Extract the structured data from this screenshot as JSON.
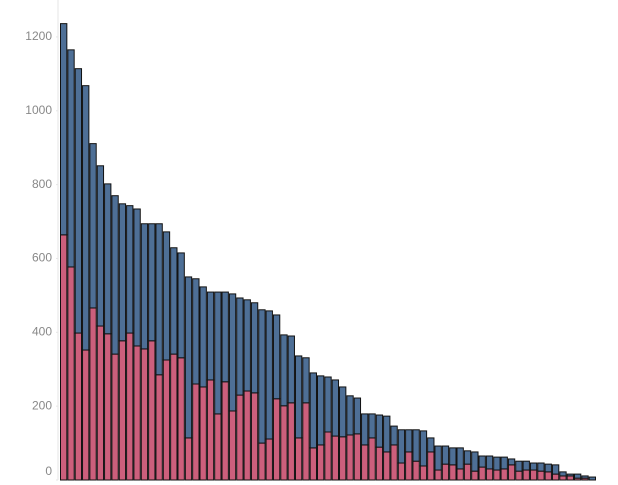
{
  "chart_data": {
    "type": "bar",
    "stacked": true,
    "grid": false,
    "categories": [
      null,
      null,
      null,
      null,
      null,
      null,
      null,
      null,
      null,
      null,
      null,
      null,
      null,
      null,
      null,
      null,
      null,
      null,
      null,
      null,
      null,
      null,
      null,
      null,
      null,
      null,
      null,
      null,
      null,
      null,
      null,
      null,
      null,
      null,
      null,
      null,
      null,
      null,
      null,
      null,
      null,
      null,
      null,
      null,
      null,
      null,
      null,
      null,
      null,
      null,
      null,
      null,
      null,
      null,
      null,
      null,
      null,
      null,
      null,
      null,
      null,
      null,
      null,
      null,
      null,
      null,
      null,
      null,
      null,
      null,
      null,
      null,
      null
    ],
    "series": [
      {
        "color": "#cc5f7c",
        "values": [
          664,
          577,
          398,
          352,
          466,
          417,
          396,
          341,
          377,
          398,
          363,
          355,
          377,
          285,
          325,
          341,
          331,
          114,
          260,
          252,
          271,
          179,
          266,
          187,
          230,
          241,
          236,
          100,
          111,
          220,
          201,
          209,
          114,
          209,
          87,
          95,
          130,
          119,
          117,
          122,
          125,
          95,
          114,
          89,
          76,
          95,
          46,
          76,
          51,
          38,
          76,
          27,
          43,
          41,
          30,
          43,
          24,
          35,
          30,
          27,
          30,
          41,
          24,
          27,
          27,
          24,
          22,
          16,
          11,
          11,
          5,
          5,
          0
        ]
      },
      {
        "color": "#4e6f96",
        "values": [
          572,
          588,
          716,
          716,
          445,
          434,
          406,
          429,
          371,
          345,
          371,
          339,
          317,
          409,
          347,
          288,
          284,
          436,
          285,
          271,
          238,
          330,
          243,
          317,
          263,
          247,
          244,
          361,
          347,
          227,
          192,
          181,
          222,
          122,
          203,
          187,
          149,
          152,
          135,
          106,
          97,
          84,
          65,
          87,
          97,
          51,
          90,
          60,
          85,
          95,
          38,
          65,
          49,
          46,
          57,
          36,
          52,
          30,
          35,
          35,
          32,
          16,
          27,
          24,
          19,
          22,
          21,
          25,
          11,
          5,
          11,
          6,
          8
        ]
      }
    ],
    "ylim": [
      0,
      1300
    ],
    "yticks": [
      0,
      200,
      400,
      600,
      800,
      1000,
      1200
    ]
  }
}
